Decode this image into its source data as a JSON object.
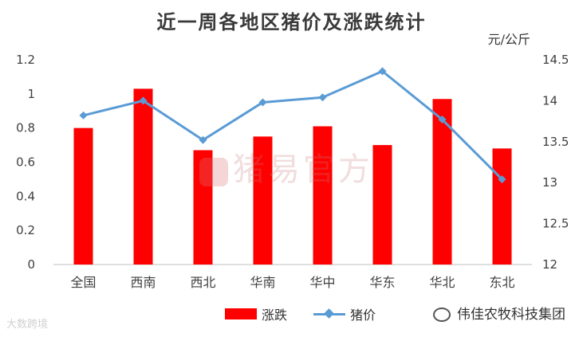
{
  "chart_data": {
    "type": "bar",
    "title": "近一周各地区猪价及涨跌统计",
    "unit_right": "元/公斤",
    "categories": [
      "全国",
      "西南",
      "西北",
      "华南",
      "华中",
      "华东",
      "华北",
      "东北"
    ],
    "series": [
      {
        "name": "涨跌",
        "type": "bar",
        "axis": "left",
        "color": "#ff0000",
        "values": [
          0.8,
          1.03,
          0.67,
          0.75,
          0.81,
          0.7,
          0.97,
          0.68
        ]
      },
      {
        "name": "猪价",
        "type": "line",
        "axis": "right",
        "color": "#5b9bd5",
        "marker": "diamond",
        "values": [
          13.82,
          14.0,
          13.52,
          13.98,
          14.04,
          14.36,
          13.77,
          13.04
        ]
      }
    ],
    "y_left": {
      "min": 0,
      "max": 1.2,
      "ticks": [
        "0",
        "0.2",
        "0.4",
        "0.6",
        "0.8",
        "1",
        "1.2"
      ]
    },
    "y_right": {
      "min": 12,
      "max": 14.5,
      "ticks": [
        "12",
        "12.5",
        "13",
        "13.5",
        "14",
        "14.5"
      ]
    },
    "grid": false,
    "legend": "bottom-center"
  },
  "watermark": "猪易官方",
  "footer": {
    "left": "大数跨境",
    "right": "伟佳农牧科技集团"
  }
}
